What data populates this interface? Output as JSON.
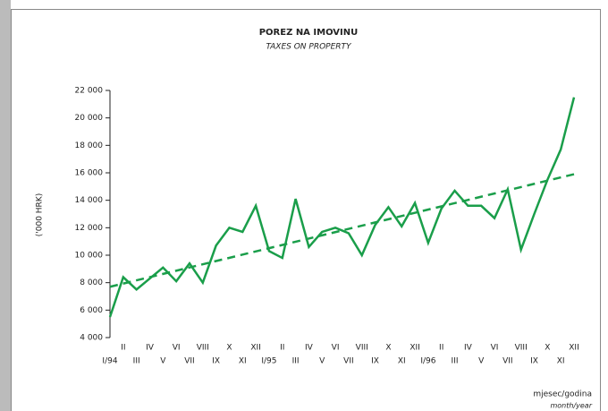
{
  "chart_data": {
    "type": "line",
    "title": "POREZ NA IMOVINU",
    "subtitle": "TAXES ON PROPERTY",
    "y_label": "('000 HRK)",
    "x_label": "mjesec/godina",
    "x_label_en": "month/year",
    "categories": [
      "I/94",
      "II",
      "III",
      "IV",
      "V",
      "VI",
      "VII",
      "VIII",
      "IX",
      "X",
      "XI",
      "XII",
      "I/95",
      "II",
      "III",
      "IV",
      "V",
      "VI",
      "VII",
      "VIII",
      "IX",
      "X",
      "XI",
      "XII",
      "I/96",
      "II",
      "III",
      "IV",
      "V",
      "VI",
      "VII",
      "VIII",
      "IX",
      "X",
      "XI",
      "XII"
    ],
    "series": [
      {
        "color": "#1a9e4a",
        "values": [
          5500,
          8400,
          7500,
          8300,
          9100,
          8100,
          9400,
          8000,
          10700,
          12000,
          11700,
          13600,
          10300,
          9800,
          14100,
          10600,
          11700,
          12000,
          11600,
          10000,
          12200,
          13500,
          12100,
          13800,
          10900,
          13400,
          14700,
          13600,
          13600,
          12700,
          14800,
          10400,
          13000,
          15500,
          17700,
          21500
        ]
      }
    ],
    "trend_line": {
      "color": "#1a9e4a",
      "start": 7700,
      "end": 15900
    },
    "ylim": [
      4000,
      22000
    ],
    "yticks": [
      {
        "value": 4000,
        "label": "4 000"
      },
      {
        "value": 6000,
        "label": "6 000"
      },
      {
        "value": 8000,
        "label": "8 000"
      },
      {
        "value": 10000,
        "label": "10 000"
      },
      {
        "value": 12000,
        "label": "12 000"
      },
      {
        "value": 14000,
        "label": "14 000"
      },
      {
        "value": 16000,
        "label": "16 000"
      },
      {
        "value": 18000,
        "label": "18 000"
      },
      {
        "value": 20000,
        "label": "20 000"
      },
      {
        "value": 22000,
        "label": "22 000"
      }
    ]
  }
}
